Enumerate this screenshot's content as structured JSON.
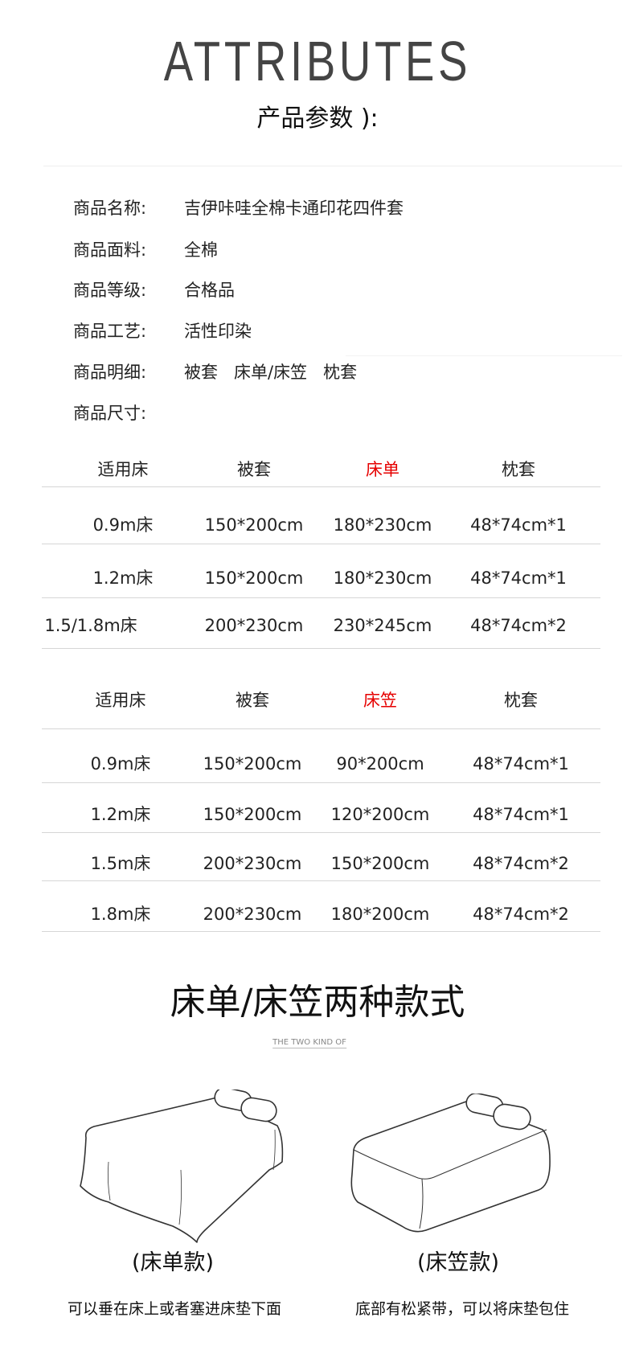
{
  "header": {
    "title_en": "ATTRIBUTES",
    "title_cn": "产品参数 ):"
  },
  "attributes": [
    {
      "label": "商品名称:",
      "value": "吉伊咔哇全棉卡通印花四件套"
    },
    {
      "label": "商品面料:",
      "value": "全棉"
    },
    {
      "label": "商品等级:",
      "value": "合格品"
    },
    {
      "label": "商品工艺:",
      "value": "活性印染"
    },
    {
      "label": "商品明细:",
      "value": "被套   床单/床笠   枕套"
    },
    {
      "label": "商品尺寸:",
      "value": ""
    }
  ],
  "table_sheet": {
    "headers": [
      "适用床",
      "被套",
      "床单",
      "枕套"
    ],
    "highlight_color": "#e60000",
    "rows": [
      [
        "0.9m床",
        "150*200cm",
        "180*230cm",
        "48*74cm*1"
      ],
      [
        "1.2m床",
        "150*200cm",
        "180*230cm",
        "48*74cm*1"
      ],
      [
        "1.5/1.8m床",
        "200*230cm",
        "230*245cm",
        "48*74cm*2"
      ]
    ]
  },
  "table_fitted": {
    "headers": [
      "适用床",
      "被套",
      "床笠",
      "枕套"
    ],
    "highlight_color": "#e60000",
    "rows": [
      [
        "0.9m床",
        "150*200cm",
        "90*200cm",
        "48*74cm*1"
      ],
      [
        "1.2m床",
        "150*200cm",
        "120*200cm",
        "48*74cm*1"
      ],
      [
        "1.5m床",
        "200*230cm",
        "150*200cm",
        "48*74cm*2"
      ],
      [
        "1.8m床",
        "200*230cm",
        "180*200cm",
        "48*74cm*2"
      ]
    ]
  },
  "styles": {
    "title": "床单/床笠两种款式",
    "subtitle": "THE TWO KIND OF",
    "items": [
      {
        "label": "(床单款)",
        "caption": "可以垂在床上或者塞进床垫下面",
        "icon": "flat-sheet-bed-icon"
      },
      {
        "label": "(床笠款)",
        "caption": "底部有松紧带，可以将床垫包住",
        "icon": "fitted-sheet-bed-icon"
      }
    ]
  }
}
